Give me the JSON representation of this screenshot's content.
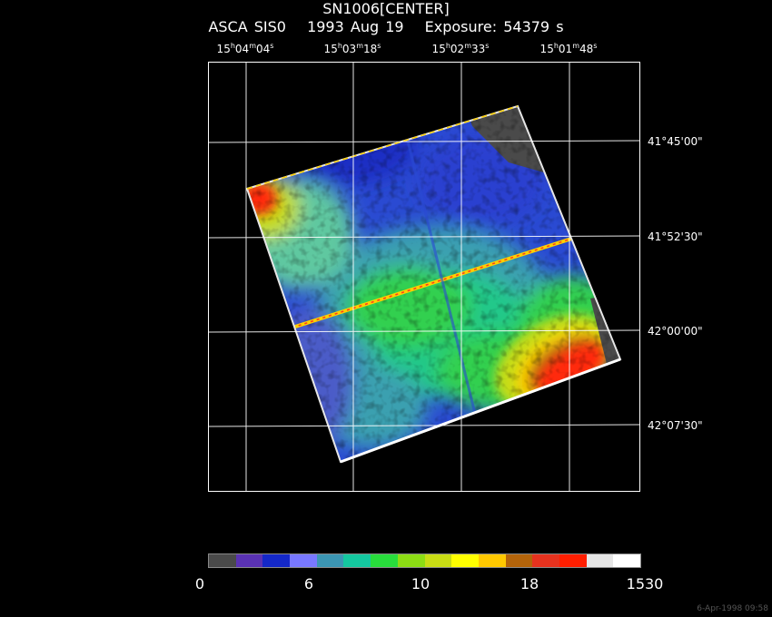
{
  "header": {
    "object": "SN1006[CENTER]",
    "instrument": "ASCA SIS0",
    "date": "1993 Aug 19",
    "exposure": "Exposure: 54379 s"
  },
  "ra_labels": [
    {
      "h": "15",
      "m": "04",
      "s": "04"
    },
    {
      "h": "15",
      "m": "03",
      "s": "18"
    },
    {
      "h": "15",
      "m": "02",
      "s": "33"
    },
    {
      "h": "15",
      "m": "01",
      "s": "48"
    }
  ],
  "dec_labels": [
    "41°45'00\"",
    "41°52'30\"",
    "42°00'00\"",
    "42°07'30\""
  ],
  "colorbar": {
    "colors": [
      "#4a4a4a",
      "#5a32b4",
      "#1428c8",
      "#7878ff",
      "#3c96b4",
      "#14c8a0",
      "#28dc3c",
      "#8cdc14",
      "#c8dc14",
      "#ffff00",
      "#ffc800",
      "#b4640a",
      "#e6321e",
      "#ff1e00",
      "#e6e6e6",
      "#ffffff"
    ],
    "ticks": [
      {
        "label": "0",
        "frac": 0.0
      },
      {
        "label": "6",
        "frac": 0.25
      },
      {
        "label": "10",
        "frac": 0.5
      },
      {
        "label": "18",
        "frac": 0.75
      },
      {
        "label": "1530",
        "frac": 1.0
      }
    ]
  },
  "footer_stamp": "6-Apr-1998 09:58"
}
